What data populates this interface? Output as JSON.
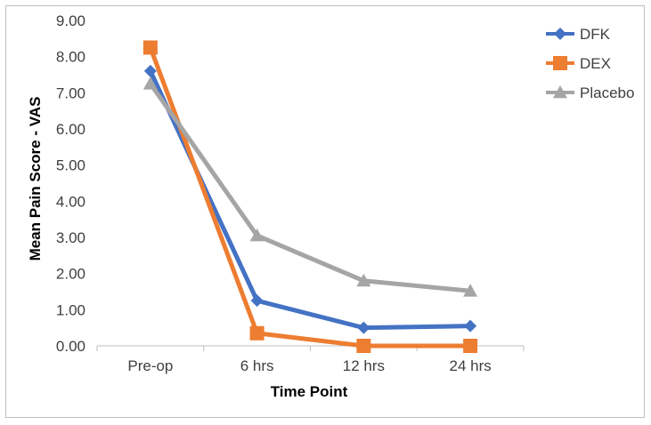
{
  "chart_data": {
    "type": "line",
    "categories": [
      "Pre-op",
      "6 hrs",
      "12 hrs",
      "24 hrs"
    ],
    "series": [
      {
        "name": "DFK",
        "values": [
          7.6,
          1.25,
          0.5,
          0.55
        ],
        "color": "#4472c4",
        "marker": "diamond"
      },
      {
        "name": "DEX",
        "values": [
          8.25,
          0.35,
          0.0,
          0.0
        ],
        "color": "#ed7d31",
        "marker": "square"
      },
      {
        "name": "Placebo",
        "values": [
          7.25,
          3.05,
          1.8,
          1.52
        ],
        "color": "#a5a5a5",
        "marker": "triangle"
      }
    ],
    "title": "",
    "xlabel": "Time Point",
    "ylabel": "Mean Pain Score - VAS",
    "ylim": [
      0,
      9
    ],
    "yticks": [
      "0.00",
      "1.00",
      "2.00",
      "3.00",
      "4.00",
      "5.00",
      "6.00",
      "7.00",
      "8.00",
      "9.00"
    ],
    "grid": false,
    "legend_position": "top-right"
  }
}
